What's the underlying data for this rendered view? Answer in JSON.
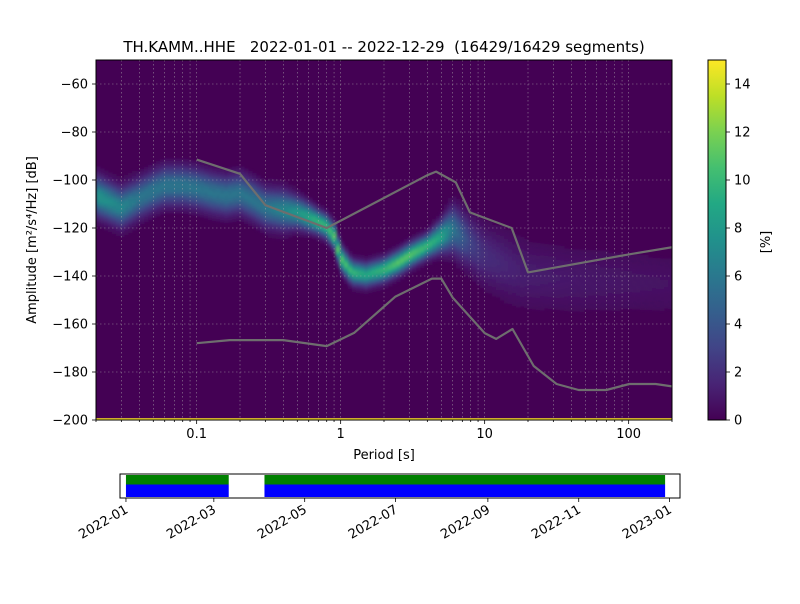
{
  "chart_data": [
    {
      "type": "heatmap",
      "title": "TH.KAMM..HHE   2022-01-01 -- 2022-12-29  (16429/16429 segments)",
      "xlabel": "Period [s]",
      "ylabel": "Amplitude [m²/s⁴/Hz] [dB]",
      "x_scale": "log",
      "xlim": [
        0.02,
        200
      ],
      "ylim": [
        -200,
        -50
      ],
      "x_ticks": [
        {
          "value": 0.1,
          "label": "0.1"
        },
        {
          "value": 1,
          "label": "1"
        },
        {
          "value": 10,
          "label": "10"
        },
        {
          "value": 100,
          "label": "100"
        }
      ],
      "y_ticks": [
        {
          "value": -60,
          "label": "−60"
        },
        {
          "value": -80,
          "label": "−80"
        },
        {
          "value": -100,
          "label": "−100"
        },
        {
          "value": -120,
          "label": "−120"
        },
        {
          "value": -140,
          "label": "−140"
        },
        {
          "value": -160,
          "label": "−160"
        },
        {
          "value": -180,
          "label": "−180"
        },
        {
          "value": -200,
          "label": "−200"
        }
      ],
      "grid": true,
      "colormap": "viridis",
      "colorbar": {
        "label": "[%]",
        "range": [
          0,
          15
        ],
        "ticks": [
          {
            "value": 0,
            "label": "0"
          },
          {
            "value": 2,
            "label": "2"
          },
          {
            "value": 4,
            "label": "4"
          },
          {
            "value": 6,
            "label": "6"
          },
          {
            "value": 8,
            "label": "8"
          },
          {
            "value": 10,
            "label": "10"
          },
          {
            "value": 12,
            "label": "12"
          },
          {
            "value": 14,
            "label": "14"
          }
        ]
      },
      "ppsd_mode": {
        "period": [
          0.02,
          0.03,
          0.04,
          0.05,
          0.06,
          0.08,
          0.1,
          0.13,
          0.16,
          0.2,
          0.25,
          0.3,
          0.4,
          0.5,
          0.6,
          0.7,
          0.8,
          0.9,
          1.0,
          1.2,
          1.5,
          2.0,
          2.5,
          3.0,
          4.0,
          5.0,
          6.0,
          8.0,
          10,
          15,
          20,
          40,
          100,
          200
        ],
        "db": [
          -107,
          -112,
          -108,
          -105,
          -103,
          -103,
          -104,
          -106,
          -107,
          -106,
          -109,
          -112,
          -113,
          -114,
          -116,
          -118,
          -120,
          -124,
          -133,
          -139,
          -140,
          -138,
          -135,
          -132,
          -128,
          -124,
          -121,
          -127,
          -132,
          -137,
          -140,
          -142,
          -143,
          -144
        ],
        "peak_percent": [
          8,
          7,
          6,
          6,
          6,
          6,
          6,
          6,
          6,
          6,
          6,
          6,
          7,
          8,
          9,
          10,
          10,
          11,
          11,
          10,
          9,
          10,
          11,
          11,
          10,
          9,
          6,
          3,
          2,
          1.5,
          1.2,
          1.0,
          0.8,
          0.7
        ],
        "spread_db": [
          5,
          5,
          5,
          5,
          5,
          5,
          5,
          5,
          5,
          5,
          5,
          5,
          5,
          4,
          3.5,
          3,
          3,
          3,
          3,
          3,
          3,
          3,
          3,
          3,
          3,
          4,
          6,
          7,
          8,
          9,
          9,
          9,
          9,
          9
        ]
      },
      "noise_models": [
        {
          "period": [
            0.1,
            0.2,
            0.3,
            0.8,
            4.0,
            4.6,
            6.3,
            7.9,
            15.4,
            20.0,
            100,
            200
          ],
          "db": [
            -91.5,
            -97.4,
            -110.5,
            -120,
            -98,
            -96.5,
            -101,
            -113.5,
            -120,
            -138.5,
            -131,
            -128
          ],
          "color": "#6e6e6e"
        },
        {
          "period": [
            0.1,
            0.17,
            0.4,
            0.8,
            1.24,
            2.4,
            4.3,
            5.0,
            6.0,
            10.0,
            12.0,
            15.6,
            21.9,
            31.6,
            45.0,
            70.0,
            101,
            154,
            200
          ],
          "db": [
            -168,
            -166.7,
            -166.7,
            -169.2,
            -163.7,
            -148.6,
            -141.1,
            -141.1,
            -149,
            -163.8,
            -166.2,
            -162.1,
            -177.5,
            -185,
            -187.5,
            -187.5,
            -185,
            -185,
            -186
          ]
        }
      ]
    },
    {
      "type": "timeline",
      "x_ticks": [
        "2022-01",
        "2022-03",
        "2022-05",
        "2022-07",
        "2022-09",
        "2022-11",
        "2023-01"
      ],
      "coverage_segments": [
        {
          "start": "2022-01-01",
          "end": "2022-03-11"
        },
        {
          "start": "2022-04-04",
          "end": "2022-12-29"
        }
      ],
      "colors": {
        "used": "#008000",
        "available": "#0000ff"
      }
    }
  ]
}
